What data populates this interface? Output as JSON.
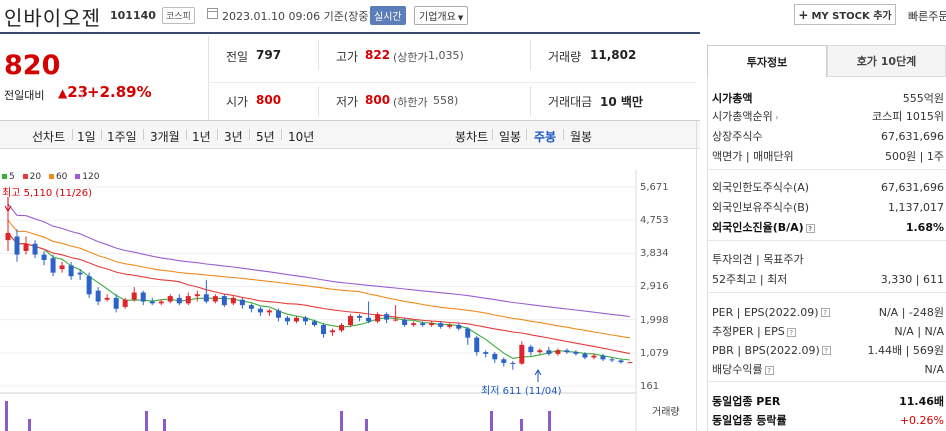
{
  "header": {
    "stock_name": "인바이오젠",
    "stock_code": "101140",
    "market": "코스피",
    "datetime": "2023.01.10 09:06  기준(장중)",
    "realtime_label": "실시간",
    "overview_label": "기업개요",
    "mystock_label": "MY STOCK 추가",
    "quick_order_label": "빠른주문"
  },
  "summary": {
    "current_price": "820",
    "change_label": "전일대비",
    "change_arrow": "▲",
    "change_value": "23",
    "change_rate": "+2.89%",
    "prev_close_label": "전일",
    "prev_close": "797",
    "high_label": "고가",
    "high": "822",
    "upper_limit_label": "(상한가",
    "upper_limit": "1,035)",
    "volume_label": "거래량",
    "volume": "11,802",
    "open_label": "시가",
    "open": "800",
    "low_label": "저가",
    "low": "800",
    "lower_limit_label": "(하한가",
    "lower_limit": "558)",
    "trade_value_label": "거래대금",
    "trade_value": "10 백만"
  },
  "period_bar": {
    "line_label": "선차트",
    "line_items": [
      "1일",
      "1주일",
      "3개월",
      "1년",
      "3년",
      "5년",
      "10년"
    ],
    "candle_label": "봉차트",
    "candle_items": [
      "일봉",
      "주봉",
      "월봉"
    ],
    "active_candle": "주봉"
  },
  "chart_data": {
    "type": "candlestick",
    "legend": [
      {
        "name": "5",
        "color": "#3cae3c"
      },
      {
        "name": "20",
        "color": "#e63c3c"
      },
      {
        "name": "60",
        "color": "#f08c1e"
      },
      {
        "name": "120",
        "color": "#9b5fd2"
      }
    ],
    "y_ticks": [
      "5,671",
      "4,753",
      "3,834",
      "2,916",
      "1,998",
      "1,079",
      "161"
    ],
    "ylim": [
      161,
      5671
    ],
    "high_annotation": "최고 5,110 (11/26)",
    "low_annotation": "최저 611 (11/04)",
    "volume_label": "거래량",
    "candles": [
      [
        4200,
        4400,
        5110,
        3900
      ],
      [
        4300,
        3800,
        4500,
        3600
      ],
      [
        3900,
        4100,
        4300,
        3800
      ],
      [
        4100,
        3800,
        4200,
        3700
      ],
      [
        3800,
        3650,
        3900,
        3500
      ],
      [
        3700,
        3300,
        3800,
        3200
      ],
      [
        3400,
        3500,
        3600,
        3300
      ],
      [
        3500,
        3200,
        3600,
        3100
      ],
      [
        3300,
        3250,
        3400,
        3100
      ],
      [
        3200,
        2700,
        3300,
        2600
      ],
      [
        2800,
        2500,
        2900,
        2400
      ],
      [
        2550,
        2600,
        2700,
        2500
      ],
      [
        2600,
        2300,
        2700,
        2200
      ],
      [
        2350,
        2550,
        2600,
        2300
      ],
      [
        2550,
        2750,
        2900,
        2500
      ],
      [
        2750,
        2500,
        2800,
        2400
      ],
      [
        2500,
        2450,
        2600,
        2400
      ],
      [
        2450,
        2500,
        2550,
        2400
      ],
      [
        2500,
        2650,
        2700,
        2450
      ],
      [
        2600,
        2450,
        2700,
        2400
      ],
      [
        2450,
        2650,
        2750,
        2400
      ],
      [
        2650,
        2700,
        2800,
        2500
      ],
      [
        2700,
        2500,
        3100,
        2450
      ],
      [
        2500,
        2650,
        2700,
        2450
      ],
      [
        2650,
        2400,
        2700,
        2350
      ],
      [
        2450,
        2600,
        2650,
        2400
      ],
      [
        2550,
        2400,
        2600,
        2300
      ],
      [
        2400,
        2300,
        2450,
        2200
      ],
      [
        2300,
        2200,
        2350,
        2100
      ],
      [
        2200,
        2250,
        2300,
        2100
      ],
      [
        2250,
        2050,
        2300,
        1950
      ],
      [
        2050,
        1950,
        2100,
        1850
      ],
      [
        1950,
        2050,
        2100,
        1900
      ],
      [
        2050,
        1950,
        2100,
        1850
      ],
      [
        1950,
        1850,
        2000,
        1800
      ],
      [
        1850,
        1600,
        1900,
        1500
      ],
      [
        1650,
        1700,
        1750,
        1550
      ],
      [
        1700,
        1850,
        1900,
        1650
      ],
      [
        1850,
        2100,
        2150,
        1800
      ],
      [
        2100,
        2050,
        2150,
        1950
      ],
      [
        2050,
        1950,
        2500,
        1900
      ],
      [
        1950,
        2150,
        2200,
        1900
      ],
      [
        2150,
        2000,
        2200,
        1900
      ],
      [
        2000,
        2000,
        2400,
        1950
      ],
      [
        2000,
        1850,
        2050,
        1800
      ],
      [
        1850,
        1900,
        1950,
        1800
      ],
      [
        1900,
        1850,
        1950,
        1800
      ],
      [
        1850,
        1900,
        1950,
        1800
      ],
      [
        1900,
        1800,
        1950,
        1750
      ],
      [
        1800,
        1850,
        1900,
        1750
      ],
      [
        1850,
        1750,
        1900,
        1700
      ],
      [
        1750,
        1500,
        1800,
        1300
      ],
      [
        1500,
        1100,
        1550,
        1000
      ],
      [
        1100,
        1050,
        1150,
        950
      ],
      [
        1050,
        900,
        1100,
        800
      ],
      [
        900,
        800,
        950,
        700
      ],
      [
        800,
        780,
        850,
        611
      ],
      [
        780,
        1300,
        1400,
        750
      ],
      [
        1250,
        1100,
        1300,
        1000
      ],
      [
        1100,
        1150,
        1200,
        1050
      ],
      [
        1150,
        1050,
        1250,
        1000
      ],
      [
        1050,
        1150,
        1200,
        1000
      ],
      [
        1150,
        1100,
        1200,
        1050
      ],
      [
        1100,
        1050,
        1150,
        1000
      ],
      [
        1050,
        950,
        1100,
        900
      ],
      [
        950,
        1000,
        1050,
        900
      ],
      [
        1000,
        900,
        1050,
        850
      ],
      [
        900,
        870,
        950,
        820
      ],
      [
        870,
        820,
        900,
        780
      ],
      [
        797,
        820,
        822,
        800
      ]
    ]
  },
  "invest_panel": {
    "tab_active": "투자정보",
    "tab_other": "호가 10단계",
    "market_cap_label": "시가총액",
    "market_cap": "555억원",
    "market_cap_rank_label": "시가총액순위",
    "market_cap_rank": "코스피 1015위",
    "shares_label": "상장주식수",
    "shares": "67,631,696",
    "par_label": "액면가",
    "trade_unit_label": "매매단위",
    "par": "500원",
    "trade_unit": "1주",
    "foreign_limit_label": "외국인한도주식수(A)",
    "foreign_limit": "67,631,696",
    "foreign_held_label": "외국인보유주식수(B)",
    "foreign_held": "1,137,017",
    "foreign_ratio_label": "외국인소진율(B/A)",
    "foreign_ratio": "1.68%",
    "opinion_label": "투자의견",
    "target_label": "목표주가",
    "week52_label": "52주최고",
    "week52_low_label": "최저",
    "week52_high": "3,330",
    "week52_low": "611",
    "per_label": "PER",
    "eps_label": "EPS(2022.09)",
    "per": "N/A",
    "eps": "-248원",
    "est_per_label": "추정PER",
    "est_eps_label": "EPS",
    "est_per": "N/A",
    "est_eps": "N/A",
    "pbr_label": "PBR",
    "bps_label": "BPS(2022.09)",
    "pbr": "1.44배",
    "bps": "569원",
    "div_label": "배당수익률",
    "div": "N/A",
    "sector_per_label": "동일업종 PER",
    "sector_per": "11.46배",
    "sector_rate_label": "동일업종 등락률",
    "sector_rate": "+0.26%"
  }
}
